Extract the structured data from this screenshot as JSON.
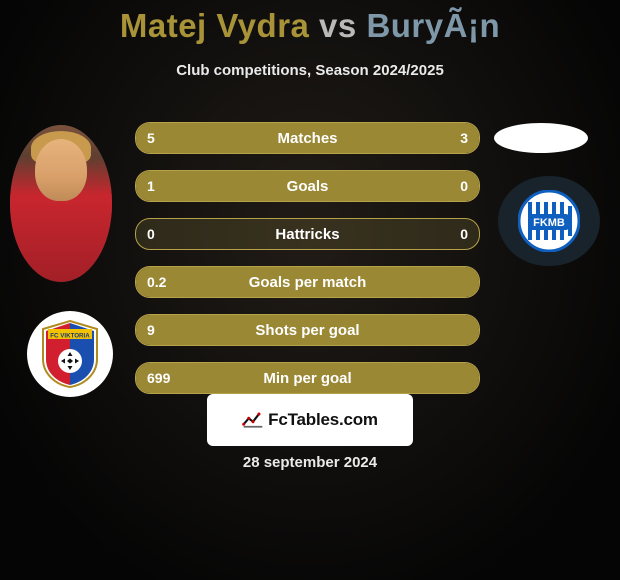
{
  "title_player1": "Matej Vydra",
  "title_vs": " vs ",
  "title_player2": "BuryÃ¡n",
  "title_color_p1": "#a99338",
  "title_color_vs": "#b9b9b9",
  "title_color_p2": "#7f98a9",
  "subtitle": "Club competitions, Season 2024/2025",
  "accent_border": "#b7a24a",
  "bar_fill_color": "#9a8835",
  "bar_bg_color": "rgba(120,107,55,0.28)",
  "plzen": {
    "red": "#d11f2f",
    "blue": "#1a4fb0",
    "yellow": "#f2c200"
  },
  "mb": {
    "blue": "#0f5fbf",
    "white": "#ffffff",
    "sky": "#7fb6e6"
  },
  "stats": [
    {
      "label": "Matches",
      "left_val": "5",
      "right_val": "3",
      "left_pct": 62.5,
      "right_pct": 37.5
    },
    {
      "label": "Goals",
      "left_val": "1",
      "right_val": "0",
      "left_pct": 78.0,
      "right_pct": 22.0
    },
    {
      "label": "Hattricks",
      "left_val": "0",
      "right_val": "0",
      "left_pct": 0.0,
      "right_pct": 0.0
    },
    {
      "label": "Goals per match",
      "left_val": "0.2",
      "right_val": "",
      "left_pct": 100.0,
      "right_pct": 0.0
    },
    {
      "label": "Shots per goal",
      "left_val": "9",
      "right_val": "",
      "left_pct": 100.0,
      "right_pct": 0.0
    },
    {
      "label": "Min per goal",
      "left_val": "699",
      "right_val": "",
      "left_pct": 100.0,
      "right_pct": 0.0
    }
  ],
  "footer_brand": "FcTables.com",
  "footer_date": "28 september 2024"
}
